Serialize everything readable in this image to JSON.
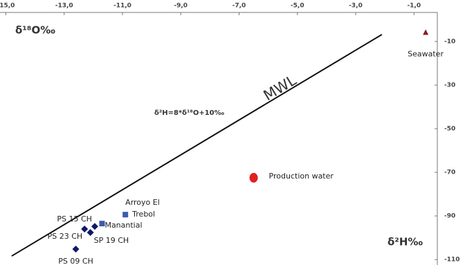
{
  "chart_data": {
    "type": "scatter",
    "x_label": "δ¹⁸O‰",
    "y_label": "δ²H‰",
    "xlim": [
      -15.2,
      -0.2
    ],
    "ylim": [
      -112.5,
      3.3
    ],
    "xticks": [
      {
        "value": -15,
        "label": "-15,0"
      },
      {
        "value": -13,
        "label": "-13,0"
      },
      {
        "value": -11,
        "label": "-11,0"
      },
      {
        "value": -9,
        "label": "-9,0"
      },
      {
        "value": -7,
        "label": "-7,0"
      },
      {
        "value": -5,
        "label": "-5,0"
      },
      {
        "value": -3,
        "label": "-3,0"
      },
      {
        "value": -1,
        "label": "-1,0"
      }
    ],
    "yticks": [
      -10,
      -30,
      -50,
      -70,
      -90,
      -110
    ],
    "mwl": {
      "label": "MWL",
      "equation": "δ²H=8*δ¹⁸O+10‰",
      "x": [
        -14.8,
        -2.1
      ],
      "y": [
        -108.4,
        -6.8
      ]
    },
    "series": [
      {
        "marker": "triangle",
        "color": "#8b1a1a",
        "x": [
          -0.6
        ],
        "y": [
          -6
        ],
        "labels": [
          [
            "Seawater"
          ]
        ]
      },
      {
        "marker": "circle",
        "color": "#e02020",
        "x": [
          -6.5
        ],
        "y": [
          -72.5
        ],
        "labels": [
          [
            "Production water"
          ]
        ]
      },
      {
        "marker": "square",
        "color": "#3a5bb0",
        "x": [
          -10.9,
          -11.7
        ],
        "y": [
          -89.4,
          -93.5
        ],
        "labels": [
          [
            "Arroyo El",
            "Trebol"
          ],
          [
            "Manantial"
          ]
        ]
      },
      {
        "marker": "diamond",
        "color": "#0c1a66",
        "x": [
          -11.95,
          -12.3,
          -12.1,
          -12.6
        ],
        "y": [
          -94.8,
          -96,
          -97.6,
          -105.2
        ],
        "labels": [
          [
            "PS 15 CH"
          ],
          [
            "PS 23 CH"
          ],
          [
            "SP 19 CH"
          ],
          [
            "PS 09 CH"
          ]
        ]
      }
    ]
  }
}
